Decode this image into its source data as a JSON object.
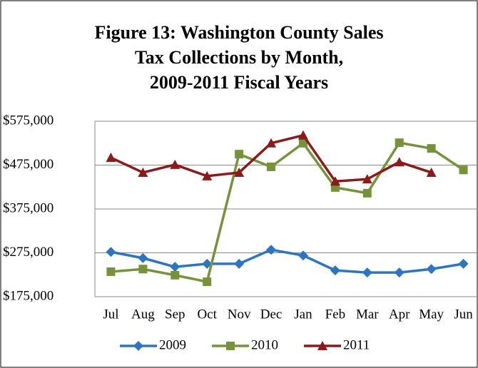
{
  "chart_data": {
    "type": "line",
    "title": [
      "Figure 13:  Washington County Sales",
      "Tax Collections by Month,",
      "2009-2011 Fiscal Years"
    ],
    "categories": [
      "Jul",
      "Aug",
      "Sep",
      "Oct",
      "Nov",
      "Dec",
      "Jan",
      "Feb",
      "Mar",
      "Apr",
      "May",
      "Jun"
    ],
    "series": [
      {
        "name": "2009",
        "color": "#2e75c0",
        "marker": "diamond",
        "values": [
          277000,
          263000,
          243000,
          250000,
          250000,
          282000,
          269000,
          235000,
          230000,
          230000,
          238000,
          250000
        ]
      },
      {
        "name": "2010",
        "color": "#76933c",
        "marker": "square",
        "values": [
          232000,
          238000,
          224000,
          209000,
          500000,
          471000,
          525000,
          424000,
          411000,
          526000,
          513000,
          464000
        ]
      },
      {
        "name": "2011",
        "color": "#8b1a1a",
        "marker": "triangle",
        "values": [
          492000,
          458000,
          476000,
          450000,
          458000,
          525000,
          543000,
          438000,
          443000,
          482000,
          458000,
          null
        ]
      }
    ],
    "ylim": [
      175000,
      575000
    ],
    "yticks": [
      {
        "value": 175000,
        "label": "$175,000"
      },
      {
        "value": 275000,
        "label": "$275,000"
      },
      {
        "value": 375000,
        "label": "$375,000"
      },
      {
        "value": 475000,
        "label": "$475,000"
      },
      {
        "value": 575000,
        "label": "$575,000"
      }
    ],
    "grid": true,
    "legend": "bottom"
  }
}
